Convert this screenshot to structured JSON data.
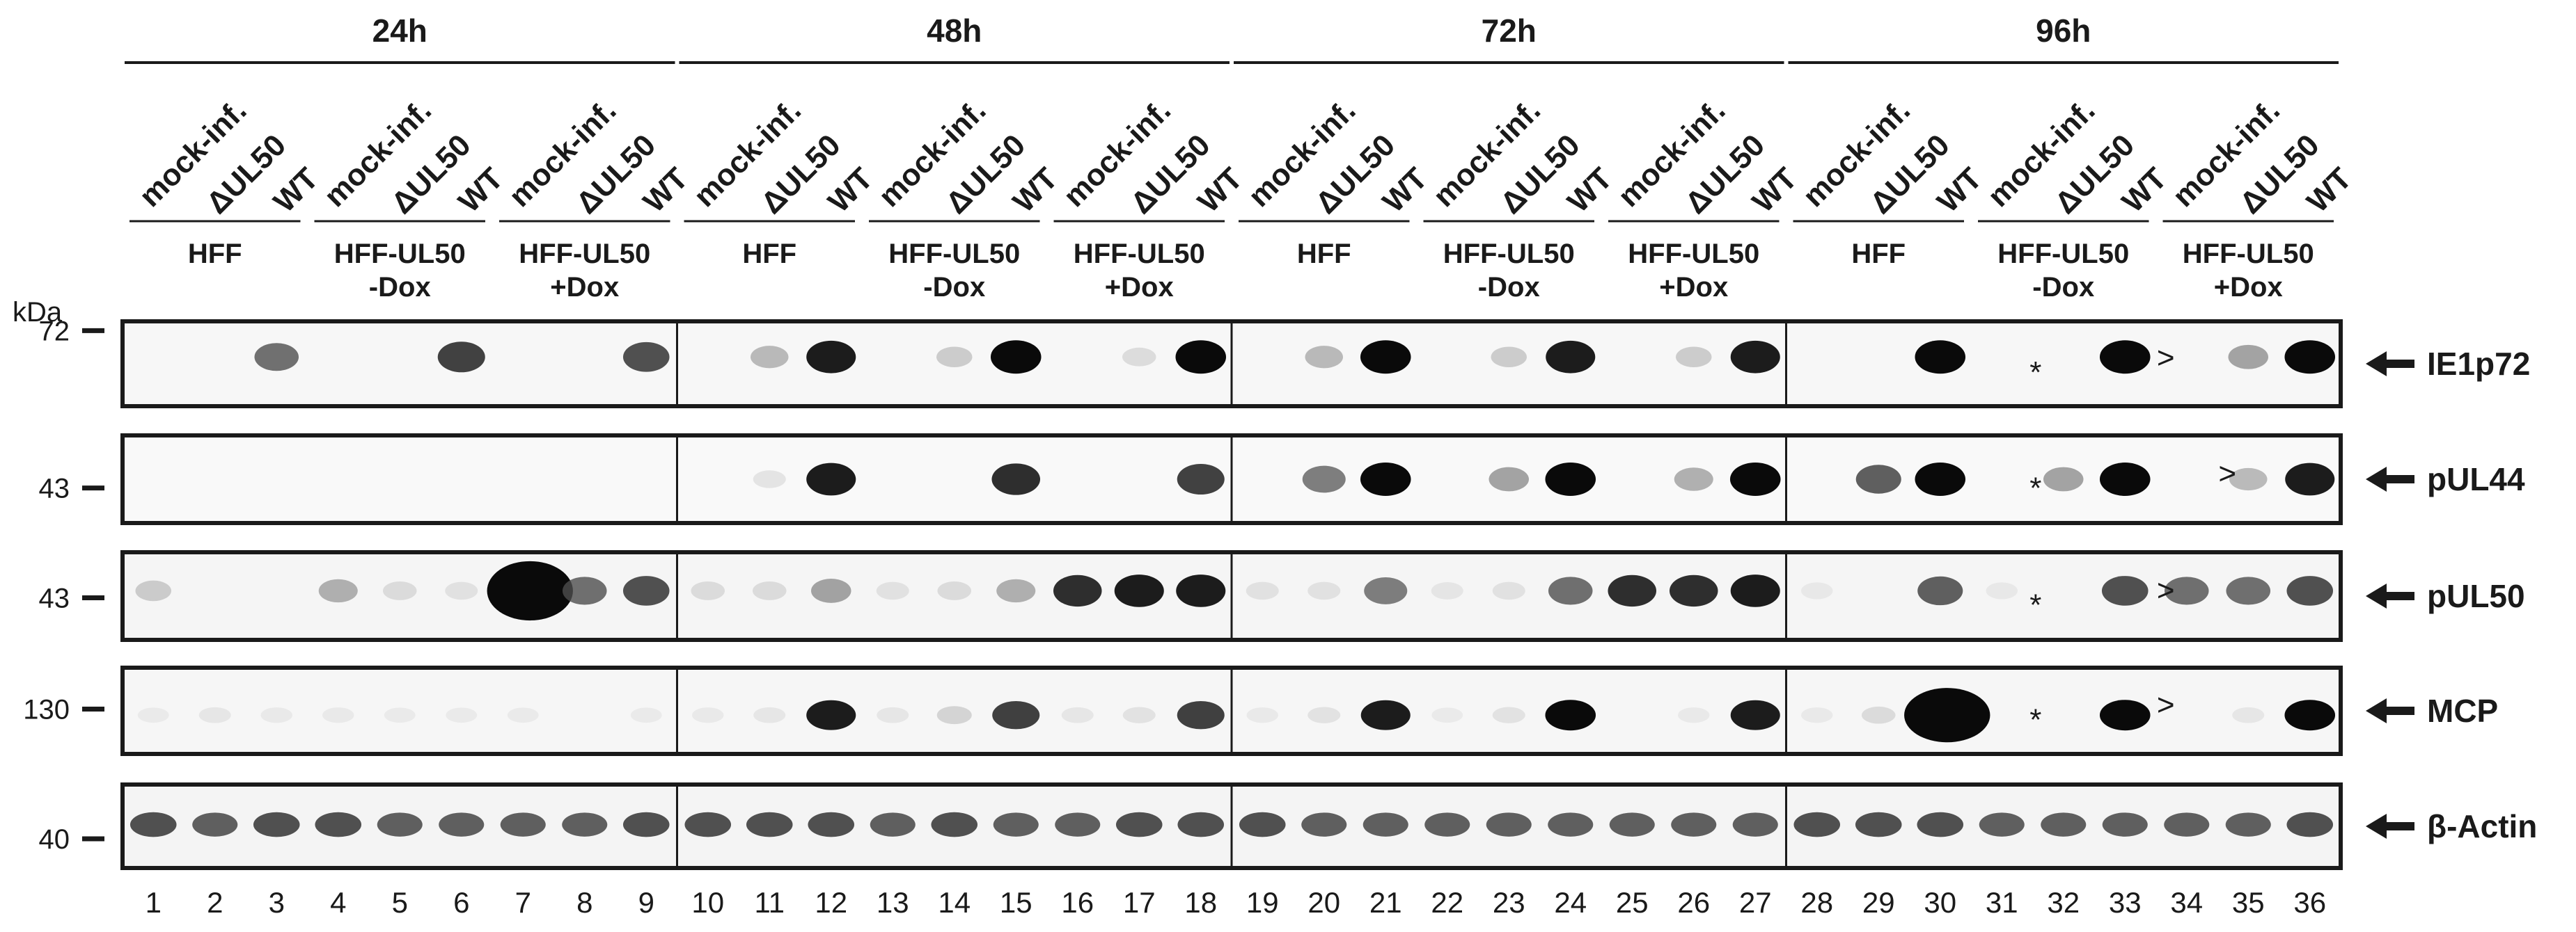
{
  "timepoints": [
    "24h",
    "48h",
    "72h",
    "96h"
  ],
  "conditions": [
    "mock-inf.",
    "ΔUL50",
    "WT"
  ],
  "cell_lines": [
    [
      "HFF"
    ],
    [
      "HFF-UL50",
      "-Dox"
    ],
    [
      "HFF-UL50",
      "+Dox"
    ]
  ],
  "kda_unit": "kDa",
  "panels": [
    {
      "protein": "IE1p72",
      "marker": "72",
      "bg": "#f7f7f7"
    },
    {
      "protein": "pUL44",
      "marker": "43",
      "bg": "#f9f9f9"
    },
    {
      "protein": "pUL50",
      "marker": "43",
      "bg": "#f5f5f5"
    },
    {
      "protein": "MCP",
      "marker": "130",
      "bg": "#f6f6f6"
    },
    {
      "protein": "β-Actin",
      "marker": "40",
      "bg": "#f4f4f4"
    }
  ],
  "lane_numbers": [
    "1",
    "2",
    "3",
    "4",
    "5",
    "6",
    "7",
    "8",
    "9",
    "10",
    "11",
    "12",
    "13",
    "14",
    "15",
    "16",
    "17",
    "18",
    "19",
    "20",
    "21",
    "22",
    "23",
    "24",
    "25",
    "26",
    "27",
    "28",
    "29",
    "30",
    "31",
    "32",
    "33",
    "34",
    "35",
    "36"
  ],
  "annotations": [
    {
      "panel": 0,
      "lane": 32,
      "symbol": "*"
    },
    {
      "panel": 0,
      "lane": 34,
      "symbol": ">"
    },
    {
      "panel": 1,
      "lane": 32,
      "symbol": "*"
    },
    {
      "panel": 1,
      "lane": 35,
      "symbol": ">"
    },
    {
      "panel": 2,
      "lane": 32,
      "symbol": "*"
    },
    {
      "panel": 2,
      "lane": 34,
      "symbol": ">"
    },
    {
      "panel": 3,
      "lane": 32,
      "symbol": "*"
    },
    {
      "panel": 3,
      "lane": 34,
      "symbol": ">"
    }
  ],
  "bands": [
    [
      [
        3,
        0.7
      ],
      [
        6,
        0.85
      ],
      [
        9,
        0.8
      ],
      [
        11,
        0.4
      ],
      [
        12,
        0.95
      ],
      [
        14,
        0.3
      ],
      [
        15,
        1
      ],
      [
        17,
        0.2
      ],
      [
        18,
        1
      ],
      [
        20,
        0.4
      ],
      [
        21,
        1
      ],
      [
        23,
        0.3
      ],
      [
        24,
        0.95
      ],
      [
        26,
        0.3
      ],
      [
        27,
        0.95
      ],
      [
        30,
        1
      ],
      [
        33,
        1
      ],
      [
        35,
        0.5
      ],
      [
        36,
        1
      ]
    ],
    [
      [
        11,
        0.15
      ],
      [
        12,
        0.95
      ],
      [
        15,
        0.9
      ],
      [
        18,
        0.85
      ],
      [
        20,
        0.65
      ],
      [
        21,
        1
      ],
      [
        23,
        0.5
      ],
      [
        24,
        1
      ],
      [
        26,
        0.45
      ],
      [
        27,
        1
      ],
      [
        29,
        0.75
      ],
      [
        30,
        1
      ],
      [
        32,
        0.5
      ],
      [
        33,
        1
      ],
      [
        35,
        0.4
      ],
      [
        36,
        0.95
      ]
    ],
    [
      [
        1,
        0.3
      ],
      [
        4,
        0.45
      ],
      [
        5,
        0.2
      ],
      [
        6,
        0.15
      ],
      [
        7,
        1.6
      ],
      [
        8,
        0.7
      ],
      [
        9,
        0.8
      ],
      [
        10,
        0.2
      ],
      [
        11,
        0.2
      ],
      [
        12,
        0.5
      ],
      [
        13,
        0.15
      ],
      [
        14,
        0.2
      ],
      [
        15,
        0.45
      ],
      [
        16,
        0.9
      ],
      [
        17,
        0.95
      ],
      [
        18,
        0.95
      ],
      [
        19,
        0.15
      ],
      [
        20,
        0.15
      ],
      [
        21,
        0.65
      ],
      [
        22,
        0.12
      ],
      [
        23,
        0.15
      ],
      [
        24,
        0.7
      ],
      [
        25,
        0.9
      ],
      [
        26,
        0.9
      ],
      [
        27,
        0.95
      ],
      [
        28,
        0.1
      ],
      [
        30,
        0.75
      ],
      [
        31,
        0.1
      ],
      [
        33,
        0.8
      ],
      [
        34,
        0.7
      ],
      [
        35,
        0.7
      ],
      [
        36,
        0.8
      ]
    ],
    [
      [
        1,
        0.08
      ],
      [
        2,
        0.12
      ],
      [
        3,
        0.1
      ],
      [
        4,
        0.1
      ],
      [
        5,
        0.08
      ],
      [
        6,
        0.08
      ],
      [
        7,
        0.08
      ],
      [
        9,
        0.08
      ],
      [
        10,
        0.1
      ],
      [
        11,
        0.12
      ],
      [
        12,
        0.95
      ],
      [
        13,
        0.12
      ],
      [
        14,
        0.25
      ],
      [
        15,
        0.85
      ],
      [
        16,
        0.12
      ],
      [
        17,
        0.15
      ],
      [
        18,
        0.85
      ],
      [
        19,
        0.1
      ],
      [
        20,
        0.15
      ],
      [
        21,
        0.95
      ],
      [
        22,
        0.08
      ],
      [
        23,
        0.15
      ],
      [
        24,
        1
      ],
      [
        26,
        0.1
      ],
      [
        27,
        0.95
      ],
      [
        28,
        0.1
      ],
      [
        29,
        0.2
      ],
      [
        30,
        1.4
      ],
      [
        33,
        1
      ],
      [
        35,
        0.12
      ],
      [
        36,
        1
      ]
    ],
    [
      [
        1,
        0.8
      ],
      [
        2,
        0.75
      ],
      [
        3,
        0.8
      ],
      [
        4,
        0.8
      ],
      [
        5,
        0.75
      ],
      [
        6,
        0.75
      ],
      [
        7,
        0.75
      ],
      [
        8,
        0.75
      ],
      [
        9,
        0.8
      ],
      [
        10,
        0.8
      ],
      [
        11,
        0.8
      ],
      [
        12,
        0.8
      ],
      [
        13,
        0.75
      ],
      [
        14,
        0.8
      ],
      [
        15,
        0.75
      ],
      [
        16,
        0.75
      ],
      [
        17,
        0.8
      ],
      [
        18,
        0.8
      ],
      [
        19,
        0.8
      ],
      [
        20,
        0.75
      ],
      [
        21,
        0.75
      ],
      [
        22,
        0.75
      ],
      [
        23,
        0.75
      ],
      [
        24,
        0.75
      ],
      [
        25,
        0.75
      ],
      [
        26,
        0.75
      ],
      [
        27,
        0.75
      ],
      [
        28,
        0.8
      ],
      [
        29,
        0.8
      ],
      [
        30,
        0.8
      ],
      [
        31,
        0.75
      ],
      [
        32,
        0.75
      ],
      [
        33,
        0.75
      ],
      [
        34,
        0.75
      ],
      [
        35,
        0.75
      ],
      [
        36,
        0.8
      ]
    ]
  ]
}
